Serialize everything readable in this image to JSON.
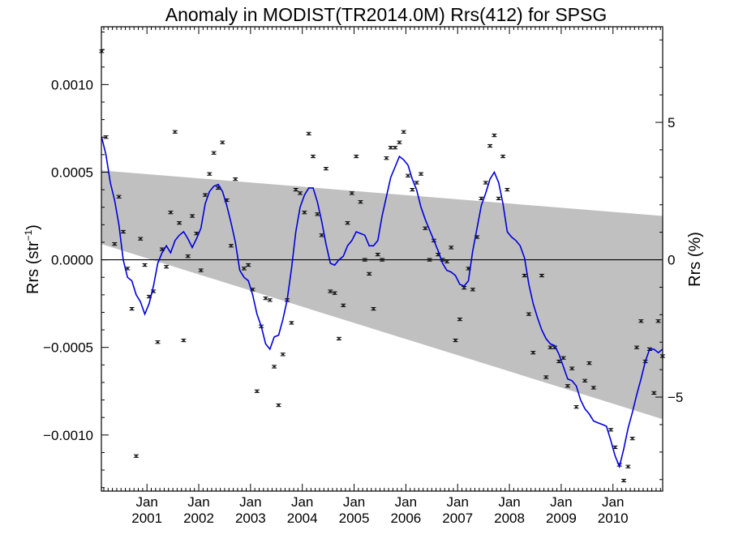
{
  "chart_data": {
    "type": "line",
    "title": "Anomaly in MODIST(TR2014.0M) Rrs(412) for SPSG",
    "ylabel": "Rrs (str",
    "ylabel_sup": "−1",
    "ylabel_close": ")",
    "y2label": "Rrs (%)",
    "xlim": [
      2000.12,
      2010.96
    ],
    "ylim": [
      -0.00132,
      0.00133
    ],
    "y2lim": [
      -8.42,
      8.48
    ],
    "x_tick_labels": [
      {
        "x": 2001.0,
        "month": "Jan",
        "year": "2001"
      },
      {
        "x": 2002.0,
        "month": "Jan",
        "year": "2002"
      },
      {
        "x": 2003.0,
        "month": "Jan",
        "year": "2003"
      },
      {
        "x": 2004.0,
        "month": "Jan",
        "year": "2004"
      },
      {
        "x": 2005.0,
        "month": "Jan",
        "year": "2005"
      },
      {
        "x": 2006.0,
        "month": "Jan",
        "year": "2006"
      },
      {
        "x": 2007.0,
        "month": "Jan",
        "year": "2007"
      },
      {
        "x": 2008.0,
        "month": "Jan",
        "year": "2008"
      },
      {
        "x": 2009.0,
        "month": "Jan",
        "year": "2009"
      },
      {
        "x": 2010.0,
        "month": "Jan",
        "year": "2010"
      }
    ],
    "y_tick_labels": [
      {
        "v": 0.001,
        "label": "0.0010"
      },
      {
        "v": 0.0005,
        "label": "0.0005"
      },
      {
        "v": 0.0,
        "label": "0.0000"
      },
      {
        "v": -0.0005,
        "label": "−0.0005"
      },
      {
        "v": -0.001,
        "label": "−0.0010"
      }
    ],
    "y_minor_step": 0.0001,
    "y2_tick_labels": [
      {
        "v": 5,
        "label": "5"
      },
      {
        "v": 0,
        "label": "0"
      },
      {
        "v": -5,
        "label": "−5"
      }
    ],
    "y2_minor_step": 1,
    "zero_line": 0,
    "band": {
      "color": "#c0c0c0",
      "upper": [
        [
          2000.12,
          0.00051
        ],
        [
          2010.96,
          0.00025
        ]
      ],
      "lower": [
        [
          2000.12,
          9e-05
        ],
        [
          2010.96,
          -0.00091
        ]
      ]
    },
    "series": [
      {
        "kind": "points",
        "color": "#000000",
        "points": [
          [
            2000.125,
            0.00119
          ],
          [
            2000.208,
            0.0007
          ],
          [
            2000.375,
            9e-05
          ],
          [
            2000.458,
            0.00036
          ],
          [
            2000.542,
            0.00016
          ],
          [
            2000.625,
            -5e-05
          ],
          [
            2000.708,
            -0.00028
          ],
          [
            2000.792,
            -0.00112
          ],
          [
            2000.875,
            0.00012
          ],
          [
            2000.958,
            -3e-05
          ],
          [
            2001.042,
            -0.00021
          ],
          [
            2001.125,
            -0.00018
          ],
          [
            2001.208,
            -0.00047
          ],
          [
            2001.292,
            6e-05
          ],
          [
            2001.375,
            -4e-05
          ],
          [
            2001.458,
            0.00027
          ],
          [
            2001.542,
            0.00073
          ],
          [
            2001.625,
            0.00021
          ],
          [
            2001.708,
            -0.00046
          ],
          [
            2001.792,
            2e-05
          ],
          [
            2001.875,
            0.00025
          ],
          [
            2001.958,
            0.00015
          ],
          [
            2002.042,
            -6e-05
          ],
          [
            2002.125,
            0.00037
          ],
          [
            2002.208,
            0.00049
          ],
          [
            2002.292,
            0.00061
          ],
          [
            2002.375,
            0.00041
          ],
          [
            2002.458,
            0.00067
          ],
          [
            2002.542,
            0.00034
          ],
          [
            2002.625,
            8e-05
          ],
          [
            2002.708,
            0.00046
          ],
          [
            2002.875,
            -5e-05
          ],
          [
            2002.958,
            -3e-05
          ],
          [
            2003.042,
            -0.00017
          ],
          [
            2003.125,
            -0.00075
          ],
          [
            2003.208,
            -0.00038
          ],
          [
            2003.292,
            -0.00022
          ],
          [
            2003.375,
            -0.00023
          ],
          [
            2003.458,
            -0.00061
          ],
          [
            2003.542,
            -0.00083
          ],
          [
            2003.625,
            -0.00054
          ],
          [
            2003.708,
            -0.00023
          ],
          [
            2003.792,
            -0.00036
          ],
          [
            2003.875,
            0.0004
          ],
          [
            2003.958,
            0.00038
          ],
          [
            2004.042,
            0.00027
          ],
          [
            2004.125,
            0.00072
          ],
          [
            2004.208,
            0.00059
          ],
          [
            2004.292,
            0.00026
          ],
          [
            2004.375,
            0.00014
          ],
          [
            2004.458,
            0.00052
          ],
          [
            2004.542,
            -0.00018
          ],
          [
            2004.625,
            -0.00019
          ],
          [
            2004.708,
            -0.00045
          ],
          [
            2004.792,
            -0.00026
          ],
          [
            2004.875,
            0.00021
          ],
          [
            2004.958,
            0.00038
          ],
          [
            2005.042,
            0.00059
          ],
          [
            2005.125,
            0.00033
          ],
          [
            2005.208,
            0.0
          ],
          [
            2005.292,
            -8e-05
          ],
          [
            2005.375,
            -0.00028
          ],
          [
            2005.458,
            3e-05
          ],
          [
            2005.542,
            0.0
          ],
          [
            2005.625,
            0.00058
          ],
          [
            2005.708,
            0.00064
          ],
          [
            2005.792,
            0.00064
          ],
          [
            2005.875,
            0.00067
          ],
          [
            2005.958,
            0.00073
          ],
          [
            2006.042,
            0.00048
          ],
          [
            2006.125,
            0.0004
          ],
          [
            2006.208,
            0.00044
          ],
          [
            2006.292,
            0.00049
          ],
          [
            2006.375,
            0.00018
          ],
          [
            2006.458,
            0.0
          ],
          [
            2006.542,
            0.00011
          ],
          [
            2006.625,
            3e-05
          ],
          [
            2006.708,
            0.0
          ],
          [
            2006.792,
            -1e-05
          ],
          [
            2006.875,
            7e-05
          ],
          [
            2006.958,
            -0.00046
          ],
          [
            2007.042,
            -0.00034
          ],
          [
            2007.125,
            -0.00016
          ],
          [
            2007.208,
            -5e-05
          ],
          [
            2007.292,
            -0.00017
          ],
          [
            2007.375,
            0.00013
          ],
          [
            2007.458,
            0.00035
          ],
          [
            2007.542,
            0.00044
          ],
          [
            2007.625,
            0.00065
          ],
          [
            2007.708,
            0.00071
          ],
          [
            2007.792,
            0.00035
          ],
          [
            2007.875,
            0.00059
          ],
          [
            2007.958,
            0.0004
          ],
          [
            2008.292,
            -9e-05
          ],
          [
            2008.375,
            -0.00031
          ],
          [
            2008.458,
            -0.00053
          ],
          [
            2008.625,
            -9e-05
          ],
          [
            2008.708,
            -0.00067
          ],
          [
            2008.792,
            -0.0005
          ],
          [
            2008.875,
            -0.0005
          ],
          [
            2008.958,
            -0.00058
          ],
          [
            2009.042,
            -0.00056
          ],
          [
            2009.125,
            -0.00072
          ],
          [
            2009.208,
            -0.00062
          ],
          [
            2009.292,
            -0.00084
          ],
          [
            2009.458,
            -0.00069
          ],
          [
            2009.542,
            -0.00059
          ],
          [
            2009.625,
            -0.00073
          ],
          [
            2009.958,
            -0.00097
          ],
          [
            2010.042,
            -0.00107
          ],
          [
            2010.125,
            -0.00117
          ],
          [
            2010.208,
            -0.00126
          ],
          [
            2010.292,
            -0.00118
          ],
          [
            2010.375,
            -0.00102
          ],
          [
            2010.458,
            -0.0005
          ],
          [
            2010.542,
            -0.00035
          ],
          [
            2010.625,
            -0.00058
          ],
          [
            2010.708,
            -0.00051
          ],
          [
            2010.792,
            -0.00076
          ],
          [
            2010.875,
            -0.00035
          ],
          [
            2010.958,
            -0.00055
          ]
        ]
      },
      {
        "kind": "line",
        "color": "#0000dd",
        "points": [
          [
            2000.125,
            0.0007
          ],
          [
            2000.208,
            0.0006
          ],
          [
            2000.292,
            0.00044
          ],
          [
            2000.375,
            0.00034
          ],
          [
            2000.458,
            0.0002
          ],
          [
            2000.542,
            0.0
          ],
          [
            2000.625,
            -0.0001
          ],
          [
            2000.708,
            -0.00012
          ],
          [
            2000.792,
            -0.0002
          ],
          [
            2000.875,
            -0.00024
          ],
          [
            2000.958,
            -0.00031
          ],
          [
            2001.042,
            -0.00025
          ],
          [
            2001.125,
            -0.00015
          ],
          [
            2001.208,
            -2e-05
          ],
          [
            2001.292,
            4e-05
          ],
          [
            2001.375,
            8e-05
          ],
          [
            2001.458,
            4e-05
          ],
          [
            2001.542,
            0.00011
          ],
          [
            2001.625,
            0.00014
          ],
          [
            2001.708,
            0.00016
          ],
          [
            2001.792,
            0.00012
          ],
          [
            2001.875,
            7e-05
          ],
          [
            2001.958,
            0.00012
          ],
          [
            2002.042,
            0.00018
          ],
          [
            2002.125,
            0.00032
          ],
          [
            2002.208,
            0.00039
          ],
          [
            2002.292,
            0.00042
          ],
          [
            2002.375,
            0.00043
          ],
          [
            2002.458,
            0.00039
          ],
          [
            2002.542,
            0.00031
          ],
          [
            2002.625,
            0.00021
          ],
          [
            2002.708,
            0.0001
          ],
          [
            2002.792,
            -6e-05
          ],
          [
            2002.875,
            -0.0001
          ],
          [
            2002.958,
            -0.00012
          ],
          [
            2003.042,
            -0.0002
          ],
          [
            2003.125,
            -0.00031
          ],
          [
            2003.208,
            -0.00038
          ],
          [
            2003.292,
            -0.00048
          ],
          [
            2003.375,
            -0.00051
          ],
          [
            2003.458,
            -0.00044
          ],
          [
            2003.542,
            -0.00043
          ],
          [
            2003.625,
            -0.00034
          ],
          [
            2003.708,
            -0.00023
          ],
          [
            2003.792,
            -5e-05
          ],
          [
            2003.875,
            0.00016
          ],
          [
            2003.958,
            0.0003
          ],
          [
            2004.042,
            0.00037
          ],
          [
            2004.125,
            0.00041
          ],
          [
            2004.208,
            0.00041
          ],
          [
            2004.292,
            0.00033
          ],
          [
            2004.375,
            0.00022
          ],
          [
            2004.458,
            9e-05
          ],
          [
            2004.542,
            -2e-05
          ],
          [
            2004.625,
            -3e-05
          ],
          [
            2004.708,
            0.0
          ],
          [
            2004.792,
            2e-05
          ],
          [
            2004.875,
            8e-05
          ],
          [
            2004.958,
            0.00011
          ],
          [
            2005.042,
            0.00016
          ],
          [
            2005.125,
            0.00015
          ],
          [
            2005.208,
            0.00014
          ],
          [
            2005.292,
            8e-05
          ],
          [
            2005.375,
            8e-05
          ],
          [
            2005.458,
            0.00011
          ],
          [
            2005.542,
            0.00025
          ],
          [
            2005.625,
            0.00036
          ],
          [
            2005.708,
            0.00047
          ],
          [
            2005.792,
            0.00053
          ],
          [
            2005.875,
            0.00059
          ],
          [
            2005.958,
            0.00057
          ],
          [
            2006.042,
            0.00054
          ],
          [
            2006.125,
            0.00046
          ],
          [
            2006.208,
            0.0004
          ],
          [
            2006.292,
            0.0003
          ],
          [
            2006.375,
            0.00023
          ],
          [
            2006.458,
            0.00017
          ],
          [
            2006.542,
            0.00011
          ],
          [
            2006.625,
            5e-05
          ],
          [
            2006.708,
            -2e-05
          ],
          [
            2006.792,
            -6e-05
          ],
          [
            2006.875,
            -7e-05
          ],
          [
            2006.958,
            -9e-05
          ],
          [
            2007.042,
            -0.00014
          ],
          [
            2007.125,
            -0.00015
          ],
          [
            2007.208,
            -0.00012
          ],
          [
            2007.292,
            5e-05
          ],
          [
            2007.375,
            0.00018
          ],
          [
            2007.458,
            0.00031
          ],
          [
            2007.542,
            0.00038
          ],
          [
            2007.625,
            0.00046
          ],
          [
            2007.708,
            0.0005
          ],
          [
            2007.792,
            0.00044
          ],
          [
            2007.875,
            0.00032
          ],
          [
            2007.958,
            0.00016
          ],
          [
            2008.042,
            0.00013
          ],
          [
            2008.125,
            0.00011
          ],
          [
            2008.208,
            8e-05
          ],
          [
            2008.292,
            1e-05
          ],
          [
            2008.375,
            -0.00014
          ],
          [
            2008.458,
            -0.00025
          ],
          [
            2008.542,
            -0.00033
          ],
          [
            2008.625,
            -0.0004
          ],
          [
            2008.708,
            -0.00045
          ],
          [
            2008.792,
            -0.00048
          ],
          [
            2008.875,
            -0.00049
          ],
          [
            2008.958,
            -0.00054
          ],
          [
            2009.042,
            -0.00061
          ],
          [
            2009.125,
            -0.00068
          ],
          [
            2009.208,
            -0.00069
          ],
          [
            2009.292,
            -0.00072
          ],
          [
            2009.375,
            -0.0008
          ],
          [
            2009.458,
            -0.00085
          ],
          [
            2009.542,
            -0.00088
          ],
          [
            2009.625,
            -0.00092
          ],
          [
            2009.708,
            -0.00093
          ],
          [
            2009.792,
            -0.00094
          ],
          [
            2009.875,
            -0.00095
          ],
          [
            2009.958,
            -0.00103
          ],
          [
            2010.042,
            -0.00112
          ],
          [
            2010.125,
            -0.00118
          ],
          [
            2010.208,
            -0.00108
          ],
          [
            2010.292,
            -0.00096
          ],
          [
            2010.375,
            -0.00087
          ],
          [
            2010.458,
            -0.00077
          ],
          [
            2010.542,
            -0.00068
          ],
          [
            2010.625,
            -0.00058
          ],
          [
            2010.708,
            -0.00051
          ],
          [
            2010.792,
            -0.00051
          ],
          [
            2010.875,
            -0.00053
          ],
          [
            2010.958,
            -0.00051
          ]
        ]
      }
    ]
  }
}
